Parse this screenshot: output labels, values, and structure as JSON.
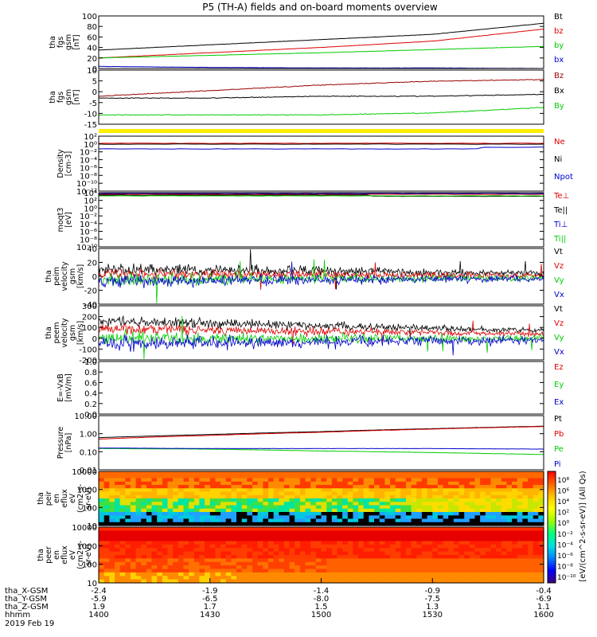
{
  "title": "P5 (TH-A) fields and on-board moments overview",
  "colors": {
    "black": "#000000",
    "red": "#dd0000",
    "green": "#00cc00",
    "blue": "#0000cc",
    "yellow": "#ffee00",
    "darkred": "#990000"
  },
  "chart_data": [
    {
      "type": "line",
      "ylabel": [
        "tha",
        "fgs",
        "gsm",
        "[nT]"
      ],
      "yticks": [
        "100",
        "80",
        "60",
        "40",
        "20",
        "0"
      ],
      "ylim": [
        0,
        100
      ],
      "series": [
        {
          "name": "Bt",
          "color": "black",
          "values": [
            35,
            45,
            55,
            65,
            86
          ]
        },
        {
          "name": "bz",
          "color": "red",
          "values": [
            20,
            30,
            40,
            52,
            75
          ]
        },
        {
          "name": "by",
          "color": "green",
          "values": [
            20,
            25,
            30,
            36,
            42
          ]
        },
        {
          "name": "bx",
          "color": "blue",
          "values": [
            4,
            2,
            1,
            1,
            0
          ]
        }
      ]
    },
    {
      "type": "line",
      "ylabel": [
        "tha",
        "fgs",
        "gsm",
        "[nT]"
      ],
      "yticks": [
        "10",
        "5",
        "0",
        "-5",
        "-10",
        "-15"
      ],
      "ylim": [
        -18,
        11
      ],
      "series": [
        {
          "name": "Bz",
          "color": "darkred",
          "values": [
            -3,
            0,
            3,
            5,
            6
          ]
        },
        {
          "name": "Bx",
          "color": "black",
          "values": [
            -4,
            -4,
            -3,
            -3,
            -2
          ]
        },
        {
          "name": "By",
          "color": "green",
          "values": [
            -13,
            -13,
            -13,
            -12,
            -9
          ]
        }
      ]
    },
    {
      "type": "line",
      "ylabel": [
        "Density",
        "[cm-3]"
      ],
      "yticks": [
        "10²",
        "10⁰",
        "10⁻²",
        "10⁻⁴",
        "10⁻⁶",
        "10⁻⁸",
        "10⁻¹⁰",
        "10⁻¹²"
      ],
      "series": [
        {
          "name": "Ne",
          "color": "red"
        },
        {
          "name": "Ni",
          "color": "black"
        },
        {
          "name": "Npot",
          "color": "blue"
        }
      ]
    },
    {
      "type": "line",
      "ylabel": [
        "moqt3",
        "[eV]"
      ],
      "yticks": [
        "10⁴",
        "10²",
        "10⁰",
        "10⁻²",
        "10⁻⁴",
        "10⁻⁶",
        "10⁻⁸",
        "10⁻¹⁰"
      ],
      "series": [
        {
          "name": "Te⊥",
          "color": "red"
        },
        {
          "name": "Te||",
          "color": "black"
        },
        {
          "name": "Ti⊥",
          "color": "blue"
        },
        {
          "name": "Ti||",
          "color": "green"
        }
      ]
    },
    {
      "type": "line",
      "ylabel": [
        "tha",
        "peim",
        "velocity",
        "gsm",
        "[km/s]"
      ],
      "yticks": [
        "40",
        "20",
        "0",
        "-20",
        "-40"
      ],
      "ylim": [
        -40,
        45
      ],
      "series": [
        {
          "name": "Vt",
          "color": "black"
        },
        {
          "name": "Vz",
          "color": "red"
        },
        {
          "name": "Vy",
          "color": "green"
        },
        {
          "name": "Vx",
          "color": "blue"
        }
      ]
    },
    {
      "type": "line",
      "ylabel": [
        "tha",
        "peem",
        "velocity",
        "gsm",
        "[km/s]"
      ],
      "yticks": [
        "300",
        "200",
        "100",
        "0",
        "-100",
        "-200"
      ],
      "ylim": [
        -200,
        300
      ],
      "series": [
        {
          "name": "Vt",
          "color": "black"
        },
        {
          "name": "Vz",
          "color": "red"
        },
        {
          "name": "Vy",
          "color": "green"
        },
        {
          "name": "Vx",
          "color": "blue"
        }
      ]
    },
    {
      "type": "line",
      "ylabel": [
        "E=-VxB",
        "[mV/m]"
      ],
      "yticks": [
        "1.0",
        "0.8",
        "0.6",
        "0.4",
        "0.2",
        "0.0"
      ],
      "ylim": [
        0,
        1
      ],
      "series": [
        {
          "name": "Ez",
          "color": "red"
        },
        {
          "name": "Ey",
          "color": "green"
        },
        {
          "name": "Ex",
          "color": "blue"
        }
      ]
    },
    {
      "type": "line",
      "ylabel": [
        "Pressure",
        "[nPa]"
      ],
      "yticks": [
        "10.00",
        "1.00",
        "0.10",
        "0.01"
      ],
      "series": [
        {
          "name": "Pt",
          "color": "black",
          "values": [
            0.6,
            0.9,
            1.3,
            1.9,
            2.6
          ]
        },
        {
          "name": "Pb",
          "color": "red",
          "values": [
            0.5,
            0.8,
            1.2,
            1.8,
            2.5
          ]
        },
        {
          "name": "Pe",
          "color": "green",
          "values": [
            0.15,
            0.14,
            0.11,
            0.09,
            0.07
          ]
        },
        {
          "name": "Pi",
          "color": "blue",
          "values": [
            0.16,
            0.15,
            0.15,
            0.15,
            0.14
          ]
        }
      ]
    },
    {
      "type": "heatmap",
      "ylabel": [
        "tha",
        "peir",
        "en",
        "eflux",
        "eV",
        "(cm2-s-",
        "sr-eV)"
      ],
      "yticks": [
        "10000",
        "1000",
        "100",
        "10"
      ]
    },
    {
      "type": "heatmap",
      "ylabel": [
        "tha",
        "peer",
        "en",
        "eflux",
        "eV",
        "(cm2-s-",
        "sr-eV)"
      ],
      "yticks": [
        "10000",
        "1000",
        "100",
        "10"
      ]
    }
  ],
  "colorbar": {
    "ticks": [
      "10⁸",
      "10⁶",
      "10⁴",
      "10²",
      "10⁰",
      "10⁻²",
      "10⁻⁴",
      "10⁻⁶",
      "10⁻⁸",
      "10⁻¹⁰"
    ],
    "label": "[eV/(cm^2-s-sr-eV)] (All Qs)"
  },
  "xaxis": {
    "rows": [
      {
        "label": "tha_X-GSM",
        "values": [
          "-2.4",
          "-1.9",
          "-1.4",
          "-0.9",
          "-0.4"
        ]
      },
      {
        "label": "tha_Y-GSM",
        "values": [
          "-5.9",
          "-6.5",
          "-8.0",
          "-7.5",
          "-6.9"
        ]
      },
      {
        "label": "tha_Z-GSM",
        "values": [
          "1.9",
          "1.7",
          "1.5",
          "1.3",
          "1.1"
        ]
      },
      {
        "label": "hhmm",
        "values": [
          "1400",
          "1430",
          "1500",
          "1530",
          "1600"
        ]
      }
    ],
    "date": "2019 Feb 19"
  }
}
